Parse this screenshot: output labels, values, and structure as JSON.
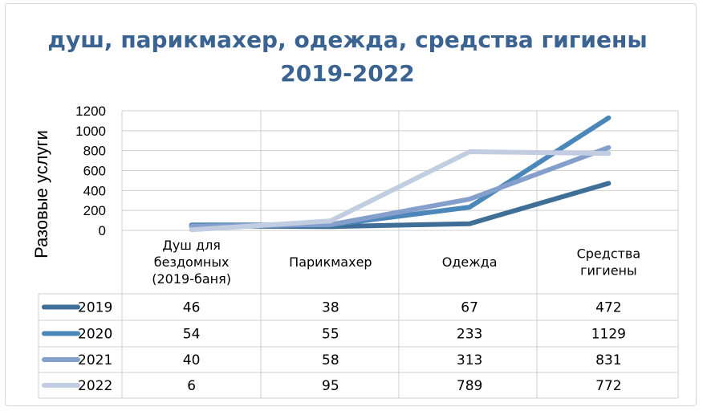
{
  "chart_data": {
    "type": "line",
    "title": "душ, парикмахер, одежда, средства гигиены 2019-2022",
    "title_lines": [
      "душ, парикмахер, одежда, средства гигиены",
      "2019-2022"
    ],
    "ylabel": "Разовые услуги",
    "xlabel": "",
    "ylim": [
      0,
      1200
    ],
    "yticks": [
      0,
      200,
      400,
      600,
      800,
      1000,
      1200
    ],
    "grid": true,
    "legend": "data-table",
    "categories": [
      "Душ для бездомных (2019-баня)",
      "Парикмахер",
      "Одежда",
      "Средства гигиены"
    ],
    "category_lines": [
      [
        "Душ для",
        "бездомных",
        "(2019-баня)"
      ],
      [
        "Парикмахер"
      ],
      [
        "Одежда"
      ],
      [
        "Средства",
        "гигиены"
      ]
    ],
    "series": [
      {
        "name": "2019",
        "color": "#3f6f97",
        "values": [
          46,
          38,
          67,
          472
        ]
      },
      {
        "name": "2020",
        "color": "#4b87b8",
        "values": [
          54,
          55,
          233,
          1129
        ]
      },
      {
        "name": "2021",
        "color": "#859fcc",
        "values": [
          40,
          58,
          313,
          831
        ]
      },
      {
        "name": "2022",
        "color": "#c2cde2",
        "values": [
          6,
          95,
          789,
          772
        ]
      }
    ]
  }
}
